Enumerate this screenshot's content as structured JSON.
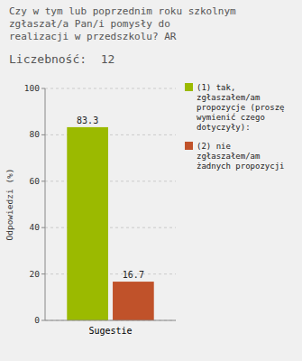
{
  "chart_data": {
    "type": "bar",
    "title": "Czy w tym lub poprzednim roku szkolnym\nzgłaszał/a Pan/i pomysły do\nrealizacji w przedszkolu? AR",
    "subtitle": "Liczebność:  12",
    "categories": [
      "Sugestie"
    ],
    "series": [
      {
        "name": "(1) tak,\nzgłaszałem/am\npropozycje (proszę\nwymienić czego\ndotyczyły):",
        "color": "#9bba00",
        "values": [
          83.3
        ]
      },
      {
        "name": "(2) nie\nzgłaszałem/am\nżadnych propozycji",
        "color": "#c0522a",
        "values": [
          16.7
        ]
      }
    ],
    "y_label": "Odpowiedzi (%)",
    "ylim": [
      0,
      100
    ],
    "yticks": [
      0,
      20,
      40,
      60,
      80,
      100
    ],
    "grid": true,
    "legend": "right",
    "data_labels": true
  }
}
